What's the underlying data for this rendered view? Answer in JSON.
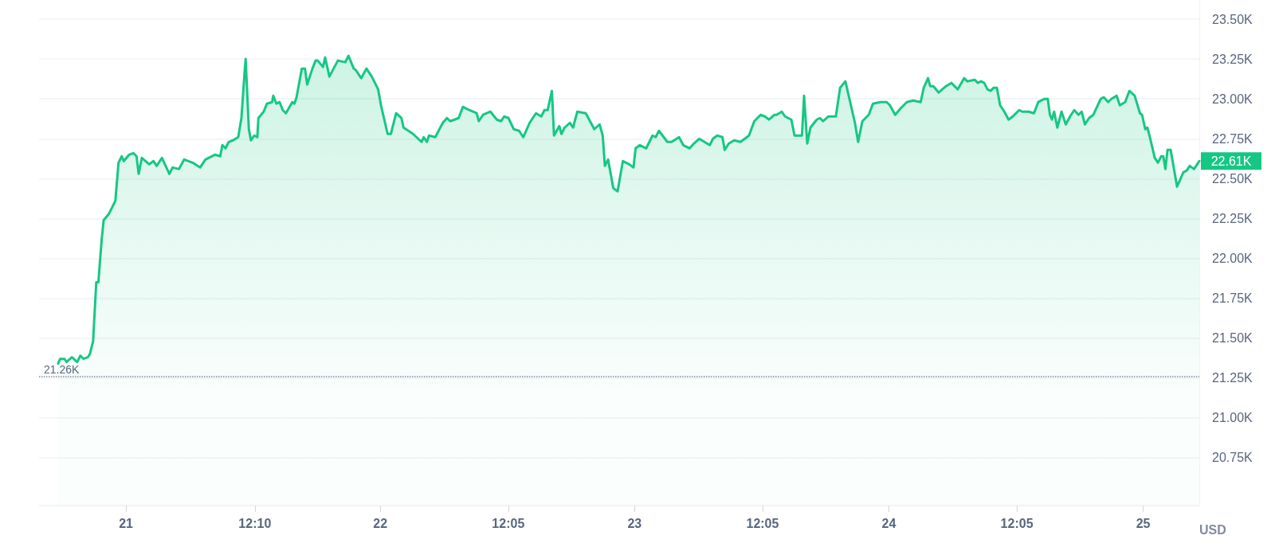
{
  "chart_data": {
    "type": "area",
    "ylabel": "USD",
    "series": [
      {
        "color": "#16c784",
        "x": [
          "--01-20T17:36",
          "--01-20T17:48",
          "--01-20T18:12",
          "--01-20T18:24",
          "--01-20T18:54",
          "--01-20T19:24",
          "--01-20T19:42",
          "--01-20T20:00",
          "--01-20T20:24",
          "--01-20T20:36",
          "--01-20T20:54",
          "--01-20T21:12",
          "--01-20T21:24",
          "--01-20T21:42",
          "--01-20T21:54",
          "--01-20T22:24",
          "--01-20T23:00",
          "--01-20T23:18",
          "--01-20T23:36",
          "--01-20T23:48",
          "--01-21T00:18",
          "--01-21T00:42",
          "--01-21T01:00",
          "--01-21T01:12",
          "--01-21T01:30",
          "--01-21T02:12",
          "--01-21T02:36",
          "--01-21T02:54",
          "--01-21T03:24",
          "--01-21T04:06",
          "--01-21T04:24",
          "--01-21T05:00",
          "--01-21T05:30",
          "--01-21T06:18",
          "--01-21T07:00",
          "--01-21T07:30",
          "--01-21T08:24",
          "--01-21T08:54",
          "--01-21T09:06",
          "--01-21T09:24",
          "--01-21T09:42",
          "--01-21T10:06",
          "--01-21T10:36",
          "--01-21T10:54",
          "--01-21T11:12",
          "--01-21T11:18",
          "--01-21T11:36",
          "--01-21T11:48",
          "--01-21T12:06",
          "--01-21T12:24",
          "--01-21T12:30",
          "--01-21T13:00",
          "--01-21T13:18",
          "--01-21T13:48",
          "--01-21T13:54",
          "--01-21T14:12",
          "--01-21T14:30",
          "--01-21T14:48",
          "--01-21T15:06",
          "--01-21T15:42",
          "--01-21T15:54",
          "--01-21T16:06",
          "--01-21T16:36",
          "--01-21T16:54",
          "--01-21T17:06",
          "--01-21T17:36",
          "--01-21T17:54",
          "--01-21T18:06",
          "--01-21T18:36",
          "--01-21T18:48",
          "--01-21T19:12",
          "--01-21T20:00",
          "--01-21T20:42",
          "--01-21T21:00",
          "--01-21T21:30",
          "--01-21T21:42",
          "--01-21T22:12",
          "--01-21T22:42",
          "--01-21T23:12",
          "--01-21T23:48",
          "--01-22T00:06",
          "--01-22T00:42",
          "--01-22T01:00",
          "--01-22T01:30",
          "--01-22T02:00",
          "--01-22T02:12",
          "--01-22T03:06",
          "--01-22T03:54",
          "--01-22T04:06",
          "--01-22T04:24",
          "--01-22T04:36",
          "--01-22T05:12",
          "--01-22T05:54",
          "--01-22T06:18",
          "--01-22T06:36",
          "--01-22T07:24",
          "--01-22T07:48",
          "--01-22T08:24",
          "--01-22T09:06",
          "--01-22T09:18",
          "--01-22T09:42",
          "--01-22T10:24",
          "--01-22T11:00",
          "--01-22T11:24",
          "--01-22T11:42",
          "--01-22T12:06",
          "--01-22T12:36",
          "--01-22T13:06",
          "--01-22T13:30",
          "--01-22T14:06",
          "--01-22T14:42",
          "--01-22T15:12",
          "--01-22T15:30",
          "--01-22T15:48",
          "--01-22T16:12",
          "--01-22T16:24",
          "--01-22T16:54",
          "--01-22T17:06",
          "--01-22T17:24",
          "--01-22T17:54",
          "--01-22T18:12",
          "--01-22T18:36",
          "--01-22T19:24",
          "--01-22T20:12",
          "--01-22T20:42",
          "--01-22T21:00",
          "--01-22T21:12",
          "--01-22T21:30",
          "--01-22T22:00",
          "--01-22T22:24",
          "--01-22T22:54",
          "--01-22T23:30",
          "--01-22T23:54",
          "--01-23T00:06",
          "--01-23T00:30",
          "--01-23T01:06",
          "--01-23T01:42",
          "--01-23T02:00",
          "--01-23T02:18",
          "--01-23T03:06",
          "--01-23T03:30",
          "--01-23T04:12",
          "--01-23T04:36",
          "--01-23T05:12",
          "--01-23T05:36",
          "--01-23T06:06",
          "--01-23T06:36",
          "--01-23T07:06",
          "--01-23T07:24",
          "--01-23T07:48",
          "--01-23T08:18",
          "--01-23T08:30",
          "--01-23T08:54",
          "--01-23T09:24",
          "--01-23T10:00",
          "--01-23T10:48",
          "--01-23T11:18",
          "--01-23T11:54",
          "--01-23T12:18",
          "--01-23T12:42",
          "--01-23T13:12",
          "--01-23T13:24",
          "--01-23T13:54",
          "--01-23T14:12",
          "--01-23T14:30",
          "--01-23T14:48",
          "--01-23T15:06",
          "--01-23T15:48",
          "--01-23T16:00",
          "--01-23T16:18",
          "--01-23T16:36",
          "--01-23T17:12",
          "--01-23T17:30",
          "--01-23T17:48",
          "--01-23T18:18",
          "--01-23T19:00",
          "--01-23T19:24",
          "--01-23T19:54",
          "--01-23T20:48",
          "--01-23T21:06",
          "--01-23T21:30",
          "--01-23T22:06",
          "--01-23T22:30",
          "--01-23T23:12",
          "--01-23T23:48",
          "--01-24T00:06",
          "--01-24T00:36",
          "--01-24T01:06",
          "--01-24T01:42",
          "--01-24T02:18",
          "--01-24T03:00",
          "--01-24T03:18",
          "--01-24T03:42",
          "--01-24T03:54",
          "--01-24T04:12",
          "--01-24T04:42",
          "--01-24T05:24",
          "--01-24T05:54",
          "--01-24T06:30",
          "--01-24T07:06",
          "--01-24T07:24",
          "--01-24T08:06",
          "--01-24T08:24",
          "--01-24T08:42",
          "--01-24T09:00",
          "--01-24T09:18",
          "--01-24T09:36",
          "--01-24T09:54",
          "--01-24T10:12",
          "--01-24T10:30",
          "--01-24T10:54",
          "--01-24T11:18",
          "--01-24T11:42",
          "--01-24T12:18",
          "--01-24T12:36",
          "--01-24T13:12",
          "--01-24T13:42",
          "--01-24T14:06",
          "--01-24T14:42",
          "--01-24T15:00",
          "--01-24T15:12",
          "--01-24T15:24",
          "--01-24T15:36",
          "--01-24T15:54",
          "--01-24T16:18",
          "--01-24T16:42",
          "--01-24T17:06",
          "--01-24T17:30",
          "--01-24T17:54",
          "--01-24T18:12",
          "--01-24T18:30",
          "--01-24T18:54",
          "--01-24T19:18",
          "--01-24T20:00",
          "--01-24T20:18",
          "--01-24T20:42",
          "--01-24T21:00",
          "--01-24T21:30",
          "--01-24T21:48",
          "--01-24T22:18",
          "--01-24T22:42",
          "--01-24T23:12",
          "--01-24T23:42",
          "--01-24T23:54",
          "--01-25T00:12",
          "--01-25T00:24",
          "--01-25T00:36",
          "--01-25T01:06",
          "--01-25T01:24",
          "--01-25T01:42",
          "--01-25T01:54",
          "--01-25T02:06",
          "--01-25T02:18",
          "--01-25T02:36",
          "--01-25T03:12",
          "--01-25T03:48",
          "--01-25T04:06",
          "--01-25T04:24",
          "--01-25T04:48",
          "--01-25T05:18"
        ],
        "values": [
          21.34,
          21.37,
          21.37,
          21.35,
          21.38,
          21.35,
          21.39,
          21.37,
          21.38,
          21.4,
          21.48,
          21.85,
          21.85,
          22.11,
          22.24,
          22.28,
          22.36,
          22.6,
          22.64,
          22.61,
          22.65,
          22.66,
          22.64,
          22.53,
          22.63,
          22.59,
          22.61,
          22.58,
          22.63,
          22.53,
          22.57,
          22.56,
          22.62,
          22.6,
          22.57,
          22.62,
          22.65,
          22.64,
          22.71,
          22.69,
          22.73,
          22.74,
          22.76,
          22.88,
          23.17,
          23.25,
          22.81,
          22.74,
          22.77,
          22.76,
          22.88,
          22.92,
          22.97,
          22.98,
          23.02,
          22.97,
          22.98,
          22.93,
          22.91,
          22.98,
          22.97,
          23.01,
          23.19,
          23.19,
          23.09,
          23.19,
          23.24,
          23.24,
          23.2,
          23.26,
          23.14,
          23.24,
          23.23,
          23.27,
          23.19,
          23.18,
          23.13,
          23.19,
          23.14,
          23.06,
          22.95,
          22.78,
          22.78,
          22.91,
          22.88,
          22.82,
          22.78,
          22.73,
          22.76,
          22.73,
          22.77,
          22.76,
          22.85,
          22.88,
          22.86,
          22.88,
          22.95,
          22.93,
          22.91,
          22.86,
          22.9,
          22.92,
          22.87,
          22.86,
          22.89,
          22.88,
          22.81,
          22.8,
          22.76,
          22.85,
          22.91,
          22.89,
          22.93,
          22.93,
          23.05,
          22.77,
          22.83,
          22.78,
          22.82,
          22.85,
          22.82,
          22.92,
          22.91,
          22.81,
          22.84,
          22.77,
          22.58,
          22.62,
          22.44,
          22.42,
          22.61,
          22.59,
          22.57,
          22.69,
          22.71,
          22.69,
          22.77,
          22.76,
          22.8,
          22.73,
          22.73,
          22.76,
          22.71,
          22.69,
          22.72,
          22.75,
          22.73,
          22.71,
          22.75,
          22.77,
          22.76,
          22.68,
          22.72,
          22.74,
          22.73,
          22.77,
          22.86,
          22.9,
          22.89,
          22.87,
          22.9,
          22.9,
          22.92,
          22.89,
          22.88,
          22.87,
          22.77,
          22.77,
          23.02,
          22.72,
          22.82,
          22.87,
          22.88,
          22.86,
          22.89,
          22.89,
          23.07,
          23.11,
          22.85,
          22.73,
          22.86,
          22.9,
          22.97,
          22.98,
          22.98,
          22.96,
          22.9,
          22.94,
          22.98,
          22.99,
          22.98,
          23.07,
          23.13,
          23.08,
          23.08,
          23.04,
          23.08,
          23.1,
          23.06,
          23.13,
          23.11,
          23.12,
          23.1,
          23.11,
          23.1,
          23.06,
          23.05,
          23.07,
          23.07,
          22.96,
          22.92,
          22.87,
          22.89,
          22.93,
          22.92,
          22.92,
          22.91,
          22.98,
          23.0,
          23.0,
          22.9,
          22.87,
          22.92,
          22.82,
          22.92,
          22.84,
          22.89,
          22.93,
          22.9,
          22.92,
          22.84,
          22.88,
          22.9,
          23.0,
          23.01,
          22.98,
          23.0,
          23.02,
          22.96,
          22.98,
          23.05,
          23.02,
          22.91,
          22.9,
          22.81,
          22.82,
          22.77,
          22.63,
          22.6,
          22.64,
          22.64,
          22.56,
          22.68,
          22.68,
          22.45,
          22.54,
          22.55,
          22.58,
          22.56,
          22.61
        ]
      }
    ],
    "xlim": [
      "--01-20T15:48",
      "--01-25T05:18"
    ],
    "xticks": [
      {
        "value": "--01-21",
        "label": "21"
      },
      {
        "value": "--01-21T12:10",
        "label": "12:10"
      },
      {
        "value": "--01-22",
        "label": "22"
      },
      {
        "value": "--01-22T12:05",
        "label": "12:05"
      },
      {
        "value": "--01-23",
        "label": "23"
      },
      {
        "value": "--01-23T12:05",
        "label": "12:05"
      },
      {
        "value": "--01-24",
        "label": "24"
      },
      {
        "value": "--01-24T12:05",
        "label": "12:05"
      },
      {
        "value": "--01-25",
        "label": "25"
      }
    ],
    "ylim": [
      20.45,
      23.62
    ],
    "yticks": [
      {
        "value": 20.75,
        "label": "20.75K"
      },
      {
        "value": 21,
        "label": "21.00K"
      },
      {
        "value": 21.25,
        "label": "21.25K"
      },
      {
        "value": 21.5,
        "label": "21.50K"
      },
      {
        "value": 21.75,
        "label": "21.75K"
      },
      {
        "value": 22,
        "label": "22.00K"
      },
      {
        "value": 22.25,
        "label": "22.25K"
      },
      {
        "value": 22.5,
        "label": "22.50K"
      },
      {
        "value": 22.75,
        "label": "22.75K"
      },
      {
        "value": 23,
        "label": "23.00K"
      },
      {
        "value": 23.25,
        "label": "23.25K"
      },
      {
        "value": 23.5,
        "label": "23.50K"
      }
    ],
    "ref_lines": [
      {
        "axis": "y",
        "value": 21.26,
        "label": "21.26K",
        "color": "#808a9d",
        "line_style": "dotted"
      }
    ],
    "annotations": [
      {
        "text": "22.61K",
        "x": "--01-25T05:18",
        "y": 22.61
      }
    ],
    "grid": "y",
    "marker": "none",
    "line_style": "solid"
  }
}
